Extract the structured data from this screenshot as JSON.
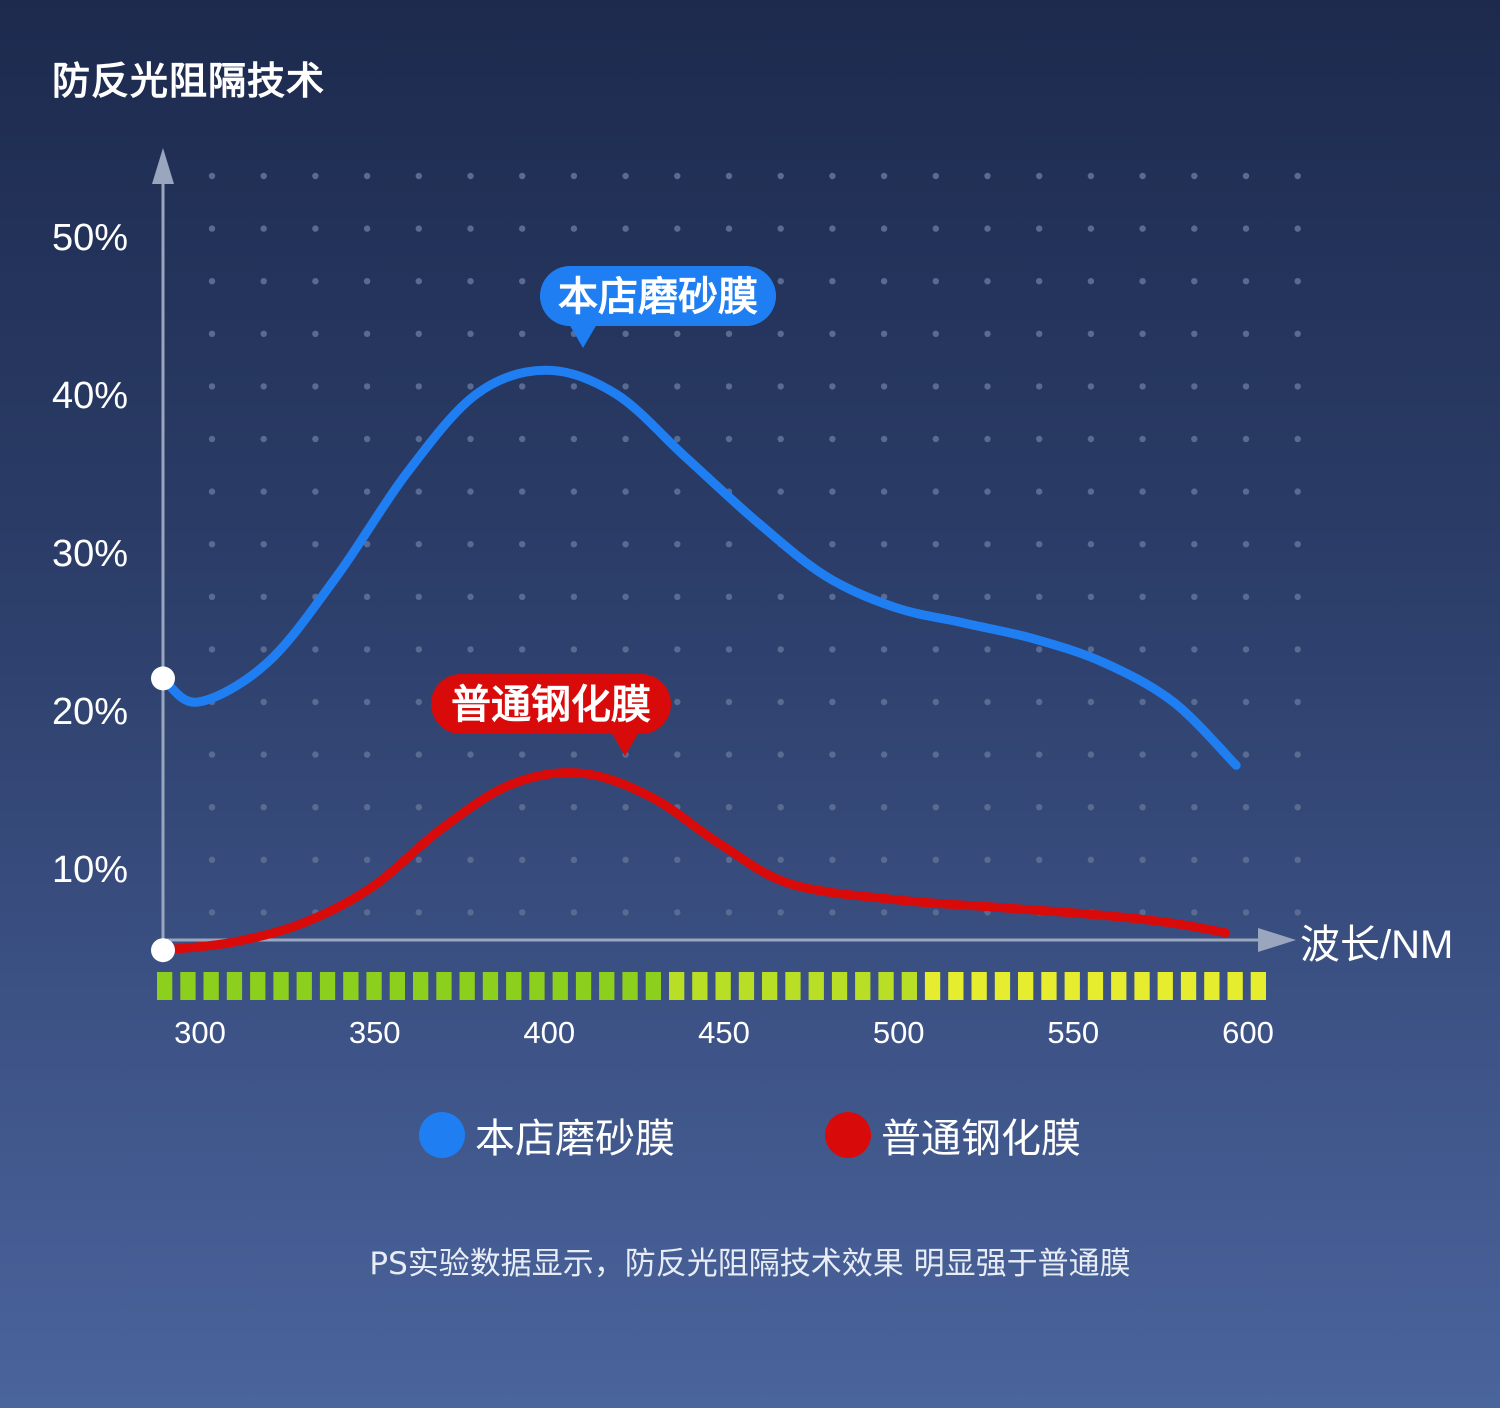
{
  "title": "防反光阻隔技术",
  "footnote": "PS实验数据显示，防反光阻隔技术效果 明显强于普通膜",
  "colors": {
    "series_a": "#1f7ff2",
    "series_b": "#d90a0a",
    "axis": "#9aa6be",
    "bar_green": "#8ccf1c",
    "bar_yellow": "#e6ec2e"
  },
  "chart_data": {
    "type": "line",
    "title": "防反光阻隔技术",
    "xlabel": "波长/NM",
    "ylabel": "",
    "xlim": [
      290,
      610
    ],
    "ylim": [
      3,
      55
    ],
    "x_ticks": [
      "300",
      "350",
      "400",
      "450",
      "500",
      "550",
      "600"
    ],
    "y_ticks": [
      "50%",
      "40%",
      "30%",
      "20%",
      "10%"
    ],
    "y_tick_values": [
      50,
      40,
      30,
      20,
      10
    ],
    "grid": "dots",
    "legend_position": "bottom",
    "series": [
      {
        "name": "本店磨砂膜",
        "callout": "本店磨砂膜",
        "callout_x": 400,
        "x": [
          290,
          300,
          320,
          340,
          360,
          380,
          400,
          420,
          440,
          460,
          480,
          500,
          520,
          540,
          560,
          580,
          598
        ],
        "values": [
          22,
          20.5,
          23,
          28.5,
          35,
          40,
          41.5,
          40,
          36,
          32,
          28.5,
          26.5,
          25.5,
          24.5,
          23,
          20.5,
          16.5
        ]
      },
      {
        "name": "普通钢化膜",
        "callout": "普通钢化膜",
        "callout_x": 400,
        "x": [
          290,
          310,
          330,
          350,
          370,
          390,
          410,
          430,
          450,
          470,
          500,
          530,
          560,
          580,
          595
        ],
        "values": [
          4.8,
          5.3,
          6.5,
          8.8,
          12.5,
          15.3,
          16.0,
          14.5,
          11.5,
          9.0,
          8.0,
          7.5,
          7.0,
          6.5,
          5.9
        ]
      }
    ],
    "markers": [
      {
        "series": 0,
        "x": 290,
        "y": 22
      },
      {
        "series": 1,
        "x": 290,
        "y": 4.8
      }
    ]
  }
}
